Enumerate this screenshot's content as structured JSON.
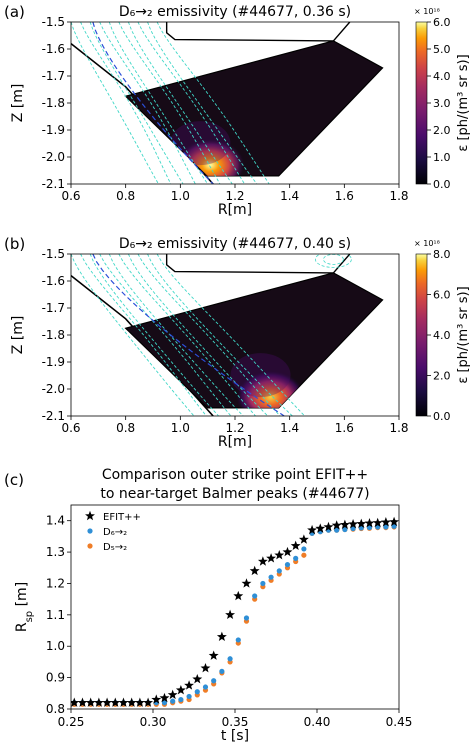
{
  "chart_data": [
    {
      "type": "heatmap",
      "panel_label": "(a)",
      "title": "D₆→₂ emissivity (#44677, 0.36 s)",
      "xlabel": "R[m]",
      "ylabel": "Z [m]",
      "xlim": [
        0.6,
        1.8
      ],
      "ylim": [
        -2.1,
        -1.5
      ],
      "xticks": [
        "0.6",
        "0.8",
        "1.0",
        "1.2",
        "1.4",
        "1.6",
        "1.8"
      ],
      "yticks": [
        "-1.5",
        "-1.6",
        "-1.7",
        "-1.8",
        "-1.9",
        "-2.0",
        "-2.1"
      ],
      "colorbar": {
        "label": "ε [ph/(m³ sr s)]",
        "exponent": "× 10¹⁸",
        "range": [
          0.0,
          6.0
        ],
        "ticks": [
          "0.0",
          "1.0",
          "2.0",
          "3.0",
          "4.0",
          "5.0",
          "6.0"
        ],
        "colormap": "inferno"
      },
      "emission_peak": {
        "R": 1.11,
        "Z": -2.03
      },
      "separatrix_color": "#2b4fd8",
      "flux_contour_color": "#3fd7c7"
    },
    {
      "type": "heatmap",
      "panel_label": "(b)",
      "title": "D₆→₂ emissivity (#44677, 0.40 s)",
      "xlabel": "R[m]",
      "ylabel": "Z [m]",
      "xlim": [
        0.6,
        1.8
      ],
      "ylim": [
        -2.1,
        -1.5
      ],
      "xticks": [
        "0.6",
        "0.8",
        "1.0",
        "1.2",
        "1.4",
        "1.6",
        "1.8"
      ],
      "yticks": [
        "-1.5",
        "-1.6",
        "-1.7",
        "-1.8",
        "-1.9",
        "-2.0",
        "-2.1"
      ],
      "colorbar": {
        "label": "ε [ph/(m³ sr s)]",
        "exponent": "× 10¹⁸",
        "range": [
          0.0,
          8.0
        ],
        "ticks": [
          "0.0",
          "2.0",
          "4.0",
          "6.0",
          "8.0"
        ],
        "colormap": "inferno"
      },
      "emission_peak": {
        "R": 1.33,
        "Z": -2.03
      },
      "separatrix_color": "#2b4fd8",
      "flux_contour_color": "#3fd7c7"
    },
    {
      "type": "scatter",
      "panel_label": "(c)",
      "title_lines": [
        "Comparison outer strike point EFIT++",
        "to near-target Balmer peaks (#44677)"
      ],
      "xlabel": "t [s]",
      "ylabel": "R_sp [m]",
      "xlim": [
        0.25,
        0.45
      ],
      "ylim": [
        0.8,
        1.45
      ],
      "xticks": [
        "0.25",
        "0.30",
        "0.35",
        "0.40",
        "0.45"
      ],
      "yticks": [
        "0.8",
        "0.9",
        "1.0",
        "1.1",
        "1.2",
        "1.3",
        "1.4"
      ],
      "legend_position": "top-left",
      "x": [
        0.252,
        0.257,
        0.262,
        0.267,
        0.272,
        0.277,
        0.282,
        0.287,
        0.292,
        0.297,
        0.302,
        0.307,
        0.312,
        0.317,
        0.322,
        0.327,
        0.332,
        0.337,
        0.342,
        0.347,
        0.352,
        0.357,
        0.362,
        0.367,
        0.372,
        0.377,
        0.382,
        0.387,
        0.392,
        0.397,
        0.402,
        0.407,
        0.412,
        0.417,
        0.422,
        0.427,
        0.432,
        0.437,
        0.442,
        0.447
      ],
      "series": [
        {
          "name": "EFIT++",
          "marker": "star",
          "color": "#000000",
          "values": [
            0.82,
            0.82,
            0.82,
            0.82,
            0.82,
            0.82,
            0.82,
            0.82,
            0.82,
            0.82,
            0.83,
            0.835,
            0.845,
            0.86,
            0.875,
            0.895,
            0.93,
            0.97,
            1.03,
            1.1,
            1.16,
            1.2,
            1.24,
            1.27,
            1.28,
            1.29,
            1.3,
            1.32,
            1.34,
            1.37,
            1.375,
            1.38,
            1.385,
            1.387,
            1.389,
            1.39,
            1.392,
            1.393,
            1.395,
            1.396
          ]
        },
        {
          "name": "D₆→₂",
          "marker": "circle",
          "color": "#2f8fd6",
          "values": [
            0.82,
            0.82,
            0.82,
            0.82,
            0.82,
            0.82,
            0.82,
            0.82,
            0.82,
            0.82,
            0.82,
            0.82,
            0.825,
            0.83,
            0.84,
            0.855,
            0.87,
            0.89,
            0.92,
            0.96,
            1.02,
            1.09,
            1.16,
            1.2,
            1.22,
            1.24,
            1.26,
            1.28,
            1.31,
            1.36,
            1.365,
            1.37,
            1.37,
            1.372,
            1.375,
            1.377,
            1.378,
            1.38,
            1.38,
            1.382
          ]
        },
        {
          "name": "D₅→₂",
          "marker": "circle",
          "color": "#ef7d27",
          "values": [
            0.815,
            0.815,
            0.815,
            0.815,
            0.815,
            0.815,
            0.815,
            0.815,
            0.815,
            0.815,
            0.815,
            0.815,
            0.82,
            0.825,
            0.83,
            0.845,
            0.86,
            0.88,
            0.915,
            0.95,
            1.01,
            1.08,
            1.15,
            1.19,
            1.21,
            1.23,
            1.25,
            1.27,
            1.29,
            1.36,
            1.365,
            1.37,
            1.37,
            1.372,
            1.373,
            1.375,
            1.376,
            1.378,
            1.378,
            1.38
          ]
        }
      ]
    }
  ]
}
